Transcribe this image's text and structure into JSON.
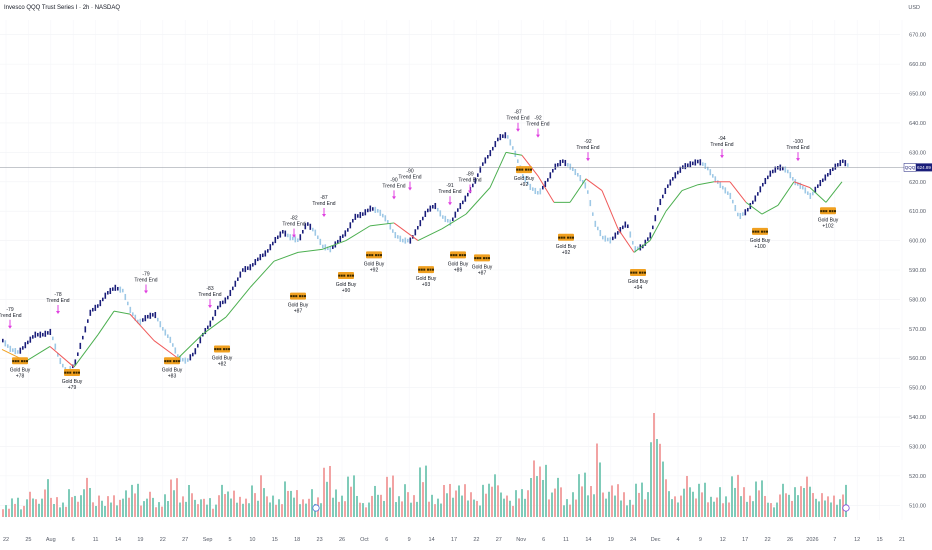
{
  "header": {
    "title": "Invesco QQQ Trust Series I · 2h · NASDAQ",
    "currency": "USD",
    "symbol": "QQQ",
    "last_price": "624.89"
  },
  "colors": {
    "up_bar": "#1a1e7a",
    "down_bar": "#9ec8e6",
    "trail_up": "#4caf50",
    "trail_down": "#f05a5a",
    "trail_neutral": "#f0a020",
    "arrow": "#e040e0",
    "box_fill": "#f0a020",
    "vol_up": "#7fcbb9",
    "vol_down": "#f2a3a3",
    "price_line": "#8a8f99",
    "price_tag": "#1a1e7a"
  },
  "chart_data": {
    "type": "line",
    "title": "Invesco QQQ Trust Series I · 2h · NASDAQ",
    "ylabel": "",
    "ylim": [
      505,
      675
    ],
    "y_ticks": [
      "670.00",
      "660.00",
      "650.00",
      "640.00",
      "630.00",
      "620.00",
      "610.00",
      "600.00",
      "590.00",
      "580.00",
      "570.00",
      "560.00",
      "550.00",
      "540.00",
      "530.00",
      "520.00",
      "510.00"
    ],
    "x_ticks": [
      "22",
      "25",
      "Aug",
      "6",
      "11",
      "14",
      "19",
      "22",
      "27",
      "Sep",
      "5",
      "10",
      "15",
      "18",
      "23",
      "26",
      "Oct",
      "6",
      "9",
      "14",
      "17",
      "22",
      "27",
      "Nov",
      "6",
      "11",
      "14",
      "19",
      "24",
      "Dec",
      "4",
      "9",
      "12",
      "17",
      "22",
      "26",
      "2026",
      "7",
      "12",
      "15",
      "21"
    ],
    "price": {
      "x": [
        0,
        8,
        16,
        24,
        32,
        40,
        48,
        56,
        64,
        72,
        80,
        88,
        96,
        104,
        112,
        120,
        128,
        136,
        144,
        152,
        160,
        168,
        176,
        184,
        192,
        200,
        208,
        216,
        224,
        232,
        240,
        248,
        256,
        264,
        272,
        280,
        288,
        296,
        304,
        312,
        320,
        328,
        336,
        344,
        352,
        360,
        368,
        376,
        384,
        392,
        400,
        408,
        416,
        424,
        432,
        440,
        448,
        456,
        464,
        472,
        480,
        488,
        496,
        504,
        512,
        520,
        528,
        536,
        544,
        552,
        560,
        568,
        576,
        584,
        592,
        600,
        608,
        616,
        624,
        632,
        640,
        648,
        656,
        664,
        672,
        680,
        688,
        696,
        704,
        712,
        720,
        728,
        736,
        744,
        752,
        760,
        768,
        776,
        784,
        792,
        800,
        808,
        816,
        824,
        832,
        840,
        848
      ],
      "close": [
        566,
        563,
        562,
        565,
        568,
        568,
        569,
        560,
        555,
        558,
        567,
        576,
        578,
        582,
        584,
        583,
        576,
        572,
        574,
        575,
        570,
        566,
        560,
        559,
        562,
        568,
        572,
        578,
        580,
        585,
        590,
        591,
        594,
        596,
        600,
        603,
        601,
        600,
        606,
        603,
        598,
        597,
        600,
        603,
        608,
        609,
        611,
        610,
        607,
        602,
        600,
        600,
        605,
        610,
        612,
        608,
        606,
        611,
        615,
        620,
        626,
        630,
        635,
        636,
        630,
        622,
        618,
        616,
        620,
        625,
        627,
        625,
        622,
        618,
        606,
        601,
        600,
        603,
        606,
        597,
        598,
        602,
        612,
        618,
        622,
        625,
        626,
        627,
        625,
        621,
        618,
        615,
        608,
        610,
        614,
        619,
        623,
        625,
        624,
        620,
        618,
        615,
        619,
        622,
        625,
        627,
        624.89
      ]
    },
    "trail_line": {
      "x": [
        0,
        24,
        48,
        72,
        96,
        112,
        128,
        152,
        176,
        200,
        224,
        248,
        272,
        296,
        320,
        344,
        368,
        392,
        416,
        440,
        464,
        488,
        504,
        520,
        536,
        552,
        568,
        584,
        600,
        616,
        632,
        648,
        664,
        680,
        696,
        712,
        728,
        744,
        760,
        776,
        792,
        808,
        824,
        840
      ],
      "value": [
        563,
        559,
        564,
        557,
        568,
        576,
        575,
        566,
        560,
        568,
        574,
        584,
        593,
        596,
        597,
        600,
        605,
        606,
        600,
        604,
        609,
        618,
        630,
        629,
        622,
        613,
        613,
        621,
        617,
        604,
        596,
        600,
        610,
        617,
        619,
        620,
        620,
        613,
        609,
        612,
        620,
        618,
        613,
        620
      ],
      "state": [
        "neutral",
        "up",
        "down",
        "up",
        "up",
        "up",
        "down",
        "down",
        "up",
        "up",
        "up",
        "up",
        "up",
        "up",
        "up",
        "up",
        "up",
        "down",
        "up",
        "up",
        "up",
        "up",
        "up",
        "down",
        "down",
        "up",
        "up",
        "down",
        "down",
        "down",
        "up",
        "up",
        "up",
        "up",
        "up",
        "down",
        "down",
        "up",
        "up",
        "up",
        "down",
        "up",
        "up",
        "up"
      ]
    },
    "signals": [
      {
        "type": "trend_end",
        "x": 8,
        "y_at": 569,
        "score": "-79",
        "label": "Trend End"
      },
      {
        "type": "trend_end",
        "x": 56,
        "y_at": 574,
        "score": "-78",
        "label": "Trend End"
      },
      {
        "type": "trend_end",
        "x": 144,
        "y_at": 581,
        "score": "-79",
        "label": "Trend End"
      },
      {
        "type": "trend_end",
        "x": 208,
        "y_at": 576,
        "score": "-83",
        "label": "Trend End"
      },
      {
        "type": "trend_end",
        "x": 292,
        "y_at": 600,
        "score": "-82",
        "label": "Trend End"
      },
      {
        "type": "trend_end",
        "x": 322,
        "y_at": 607,
        "score": "-87",
        "label": "Trend End"
      },
      {
        "type": "trend_end",
        "x": 392,
        "y_at": 613,
        "score": "-90",
        "label": "Trend End"
      },
      {
        "type": "trend_end",
        "x": 408,
        "y_at": 616,
        "score": "-90",
        "label": "Trend End"
      },
      {
        "type": "trend_end",
        "x": 448,
        "y_at": 611,
        "score": "-91",
        "label": "Trend End"
      },
      {
        "type": "trend_end",
        "x": 468,
        "y_at": 615,
        "score": "-89",
        "label": "Trend End"
      },
      {
        "type": "trend_end",
        "x": 516,
        "y_at": 636,
        "score": "-87",
        "label": "Trend End"
      },
      {
        "type": "trend_end",
        "x": 536,
        "y_at": 634,
        "score": "-92",
        "label": "Trend End"
      },
      {
        "type": "trend_end",
        "x": 586,
        "y_at": 626,
        "score": "-92",
        "label": "Trend End"
      },
      {
        "type": "trend_end",
        "x": 720,
        "y_at": 627,
        "score": "-94",
        "label": "Trend End"
      },
      {
        "type": "trend_end",
        "x": 796,
        "y_at": 626,
        "score": "-100",
        "label": "Trend End"
      },
      {
        "type": "gold_buy",
        "x": 18,
        "y_at": 561,
        "score": "+78",
        "label": "Gold Buy",
        "box_text": "■■■ ■■■"
      },
      {
        "type": "gold_buy",
        "x": 70,
        "y_at": 557,
        "score": "+79",
        "label": "Gold Buy",
        "box_text": "■■■ ■■■"
      },
      {
        "type": "gold_buy",
        "x": 170,
        "y_at": 561,
        "score": "+83",
        "label": "Gold Buy",
        "box_text": "■■■ ■■■"
      },
      {
        "type": "gold_buy",
        "x": 220,
        "y_at": 565,
        "score": "+82",
        "label": "Gold Buy",
        "box_text": "■■■ ■■■"
      },
      {
        "type": "gold_buy",
        "x": 296,
        "y_at": 583,
        "score": "+87",
        "label": "Gold Buy",
        "box_text": "■■■ ■■■"
      },
      {
        "type": "gold_buy",
        "x": 344,
        "y_at": 590,
        "score": "+90",
        "label": "Gold Buy",
        "box_text": "■■■ ■■■"
      },
      {
        "type": "gold_buy",
        "x": 372,
        "y_at": 597,
        "score": "+92",
        "label": "Gold Buy",
        "box_text": "■■■ ■■■"
      },
      {
        "type": "gold_buy",
        "x": 424,
        "y_at": 592,
        "score": "+93",
        "label": "Gold Buy",
        "box_text": "■■■ ■■■"
      },
      {
        "type": "gold_buy",
        "x": 456,
        "y_at": 597,
        "score": "+89",
        "label": "Gold Buy",
        "box_text": "■■■ ■■■"
      },
      {
        "type": "gold_buy",
        "x": 480,
        "y_at": 596,
        "score": "+87",
        "label": "Gold Buy",
        "box_text": "■■■ ■■■"
      },
      {
        "type": "gold_buy",
        "x": 522,
        "y_at": 626,
        "score": "+92",
        "label": "Gold Buy",
        "box_text": "■■■ ■■■"
      },
      {
        "type": "gold_buy",
        "x": 564,
        "y_at": 603,
        "score": "+92",
        "label": "Gold Buy",
        "box_text": "■■■ ■■■"
      },
      {
        "type": "gold_buy",
        "x": 636,
        "y_at": 591,
        "score": "+94",
        "label": "Gold Buy",
        "box_text": "■■■ ■■■"
      },
      {
        "type": "gold_buy",
        "x": 758,
        "y_at": 605,
        "score": "+100",
        "label": "Gold Buy",
        "box_text": "■■■ ■■■"
      },
      {
        "type": "gold_buy",
        "x": 826,
        "y_at": 612,
        "score": "+102",
        "label": "Gold Buy",
        "box_text": "■■■ ■■■"
      }
    ],
    "volume": {
      "note": "relative heights 0-1",
      "values": [
        0.12,
        0.18,
        0.1,
        0.22,
        0.15,
        0.3,
        0.2,
        0.14,
        0.26,
        0.19,
        0.33,
        0.12,
        0.17,
        0.21,
        0.16,
        0.24,
        0.28,
        0.13,
        0.2,
        0.15,
        0.22,
        0.35,
        0.18,
        0.27,
        0.14,
        0.19,
        0.12,
        0.3,
        0.23,
        0.17,
        0.15,
        0.25,
        0.42,
        0.2,
        0.16,
        0.31,
        0.22,
        0.14,
        0.28,
        0.19,
        0.46,
        0.24,
        0.18,
        0.33,
        0.22,
        0.14,
        0.29,
        0.2,
        0.35,
        0.17,
        0.26,
        0.22,
        0.48,
        0.2,
        0.16,
        0.27,
        0.21,
        0.33,
        0.24,
        0.15,
        0.29,
        0.36,
        0.2,
        0.17,
        0.27,
        0.25,
        0.51,
        0.44,
        0.2,
        0.31,
        0.18,
        0.24,
        0.4,
        0.27,
        0.62,
        0.2,
        0.33,
        0.24,
        0.16,
        0.3,
        0.21,
        0.85,
        0.58,
        0.26,
        0.2,
        0.37,
        0.22,
        0.28,
        0.16,
        0.3,
        0.2,
        0.38,
        0.26,
        0.18,
        0.29,
        0.22,
        0.14,
        0.31,
        0.2,
        0.26,
        0.33,
        0.19,
        0.24,
        0.2,
        0.16,
        0.28,
        0.14
      ]
    },
    "price_level": 624.89
  }
}
